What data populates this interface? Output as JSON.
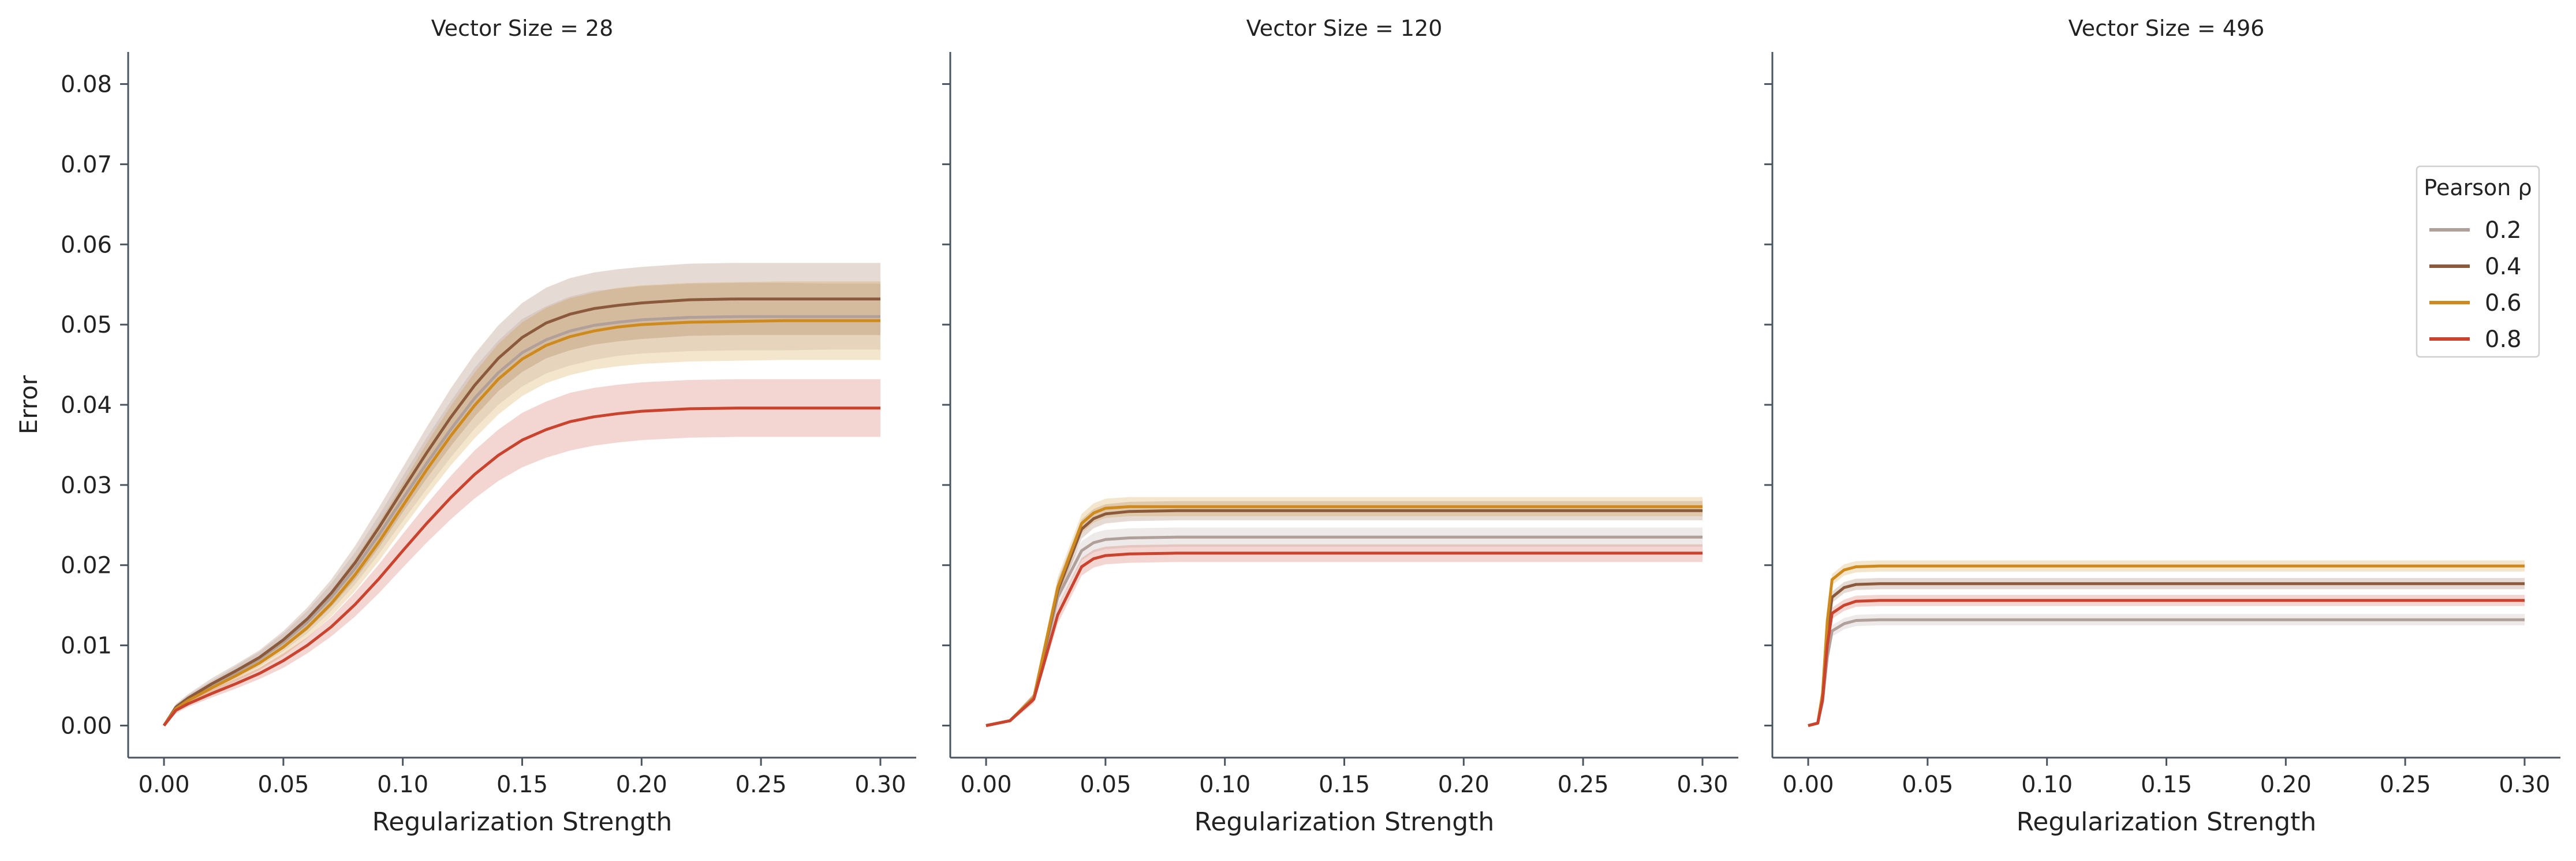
{
  "chart_data": [
    {
      "type": "line",
      "title": "Vector Size = 28",
      "xlabel": "Regularization Strength",
      "ylabel": "Error",
      "xlim": [
        -0.015,
        0.315
      ],
      "ylim": [
        -0.004,
        0.084
      ],
      "xticks": [
        "0.00",
        "0.05",
        "0.10",
        "0.15",
        "0.20",
        "0.25",
        "0.30"
      ],
      "yticks": [
        "0.00",
        "0.01",
        "0.02",
        "0.03",
        "0.04",
        "0.05",
        "0.06",
        "0.07",
        "0.08"
      ],
      "x": [
        0.0,
        0.005,
        0.01,
        0.02,
        0.03,
        0.04,
        0.05,
        0.06,
        0.07,
        0.08,
        0.09,
        0.1,
        0.11,
        0.12,
        0.13,
        0.14,
        0.15,
        0.16,
        0.17,
        0.18,
        0.19,
        0.2,
        0.22,
        0.24,
        0.26,
        0.28,
        0.3
      ],
      "series": [
        {
          "name": "0.2",
          "color": "#b19f99",
          "values": [
            0.0,
            0.0022,
            0.0033,
            0.005,
            0.0066,
            0.0083,
            0.0104,
            0.0129,
            0.016,
            0.0196,
            0.0238,
            0.0283,
            0.0327,
            0.0369,
            0.0408,
            0.044,
            0.0465,
            0.0481,
            0.0492,
            0.0499,
            0.0503,
            0.0506,
            0.0509,
            0.051,
            0.051,
            0.051,
            0.051
          ],
          "lower": [
            0.0,
            0.0018,
            0.0028,
            0.0044,
            0.0058,
            0.0074,
            0.0093,
            0.0115,
            0.0143,
            0.0176,
            0.0214,
            0.0255,
            0.0295,
            0.0334,
            0.037,
            0.04,
            0.0423,
            0.0439,
            0.0449,
            0.0456,
            0.0461,
            0.0464,
            0.0467,
            0.0468,
            0.0468,
            0.0469,
            0.0469
          ],
          "upper": [
            0.0,
            0.0026,
            0.0038,
            0.0056,
            0.0074,
            0.0092,
            0.0115,
            0.0143,
            0.0177,
            0.0216,
            0.0262,
            0.0311,
            0.0359,
            0.0404,
            0.0446,
            0.048,
            0.0507,
            0.0523,
            0.0535,
            0.0542,
            0.0545,
            0.0548,
            0.0551,
            0.0552,
            0.0552,
            0.0551,
            0.0551
          ]
        },
        {
          "name": "0.4",
          "color": "#8b5a3c",
          "values": [
            0.0,
            0.0023,
            0.0034,
            0.0052,
            0.0068,
            0.0085,
            0.0107,
            0.0133,
            0.0165,
            0.0203,
            0.0247,
            0.0294,
            0.034,
            0.0384,
            0.0424,
            0.0458,
            0.0484,
            0.0502,
            0.0513,
            0.052,
            0.0524,
            0.0527,
            0.0531,
            0.0532,
            0.0532,
            0.0532,
            0.0532
          ],
          "lower": [
            0.0,
            0.0019,
            0.0029,
            0.0045,
            0.006,
            0.0076,
            0.0096,
            0.0119,
            0.0148,
            0.0182,
            0.0222,
            0.0266,
            0.0308,
            0.0348,
            0.0385,
            0.0417,
            0.0441,
            0.0458,
            0.0468,
            0.0475,
            0.0479,
            0.0482,
            0.0486,
            0.0487,
            0.0487,
            0.0487,
            0.0487
          ],
          "upper": [
            0.0,
            0.0027,
            0.0039,
            0.0059,
            0.0076,
            0.0094,
            0.0118,
            0.0147,
            0.0182,
            0.0224,
            0.0272,
            0.0322,
            0.0372,
            0.042,
            0.0463,
            0.0499,
            0.0527,
            0.0546,
            0.0558,
            0.0565,
            0.0569,
            0.0572,
            0.0576,
            0.0577,
            0.0577,
            0.0577,
            0.0577
          ]
        },
        {
          "name": "0.6",
          "color": "#cf8a1d",
          "values": [
            0.0,
            0.0021,
            0.0031,
            0.0047,
            0.0062,
            0.0078,
            0.0098,
            0.0122,
            0.0152,
            0.0188,
            0.0229,
            0.0274,
            0.0319,
            0.0361,
            0.0399,
            0.0432,
            0.0457,
            0.0474,
            0.0485,
            0.0492,
            0.0497,
            0.05,
            0.0503,
            0.0504,
            0.0505,
            0.0505,
            0.0505
          ],
          "lower": [
            0.0,
            0.0017,
            0.0026,
            0.0041,
            0.0055,
            0.0069,
            0.0087,
            0.0109,
            0.0136,
            0.0168,
            0.0205,
            0.0246,
            0.0286,
            0.0324,
            0.0358,
            0.0388,
            0.0411,
            0.0427,
            0.0437,
            0.0444,
            0.0448,
            0.0451,
            0.0454,
            0.0455,
            0.0456,
            0.0456,
            0.0456
          ],
          "upper": [
            0.0,
            0.0025,
            0.0036,
            0.0053,
            0.0069,
            0.0087,
            0.0109,
            0.0135,
            0.0168,
            0.0208,
            0.0253,
            0.0302,
            0.0352,
            0.0398,
            0.044,
            0.0476,
            0.0503,
            0.0521,
            0.0533,
            0.054,
            0.0546,
            0.0549,
            0.0552,
            0.0553,
            0.0554,
            0.0554,
            0.0554
          ]
        },
        {
          "name": "0.8",
          "color": "#c9432e",
          "values": [
            0.0,
            0.0019,
            0.0027,
            0.004,
            0.0052,
            0.0065,
            0.0081,
            0.01,
            0.0123,
            0.0151,
            0.0183,
            0.0218,
            0.0252,
            0.0284,
            0.0313,
            0.0337,
            0.0356,
            0.0369,
            0.0379,
            0.0385,
            0.0389,
            0.0392,
            0.0395,
            0.0396,
            0.0396,
            0.0396,
            0.0396
          ],
          "lower": [
            0.0,
            0.0015,
            0.0023,
            0.0035,
            0.0046,
            0.0058,
            0.0072,
            0.009,
            0.0111,
            0.0136,
            0.0165,
            0.0197,
            0.0228,
            0.0257,
            0.0283,
            0.0305,
            0.0322,
            0.0334,
            0.0343,
            0.0349,
            0.0353,
            0.0356,
            0.0359,
            0.036,
            0.036,
            0.036,
            0.036
          ],
          "upper": [
            0.0,
            0.0023,
            0.0031,
            0.0045,
            0.0058,
            0.0072,
            0.009,
            0.011,
            0.0135,
            0.0166,
            0.0201,
            0.0239,
            0.0276,
            0.0311,
            0.0343,
            0.0369,
            0.039,
            0.0404,
            0.0415,
            0.0421,
            0.0425,
            0.0428,
            0.0431,
            0.0432,
            0.0432,
            0.0432,
            0.0432
          ]
        }
      ]
    },
    {
      "type": "line",
      "title": "Vector Size = 120",
      "xlabel": "Regularization Strength",
      "ylabel": "",
      "xlim": [
        -0.015,
        0.315
      ],
      "ylim": [
        -0.004,
        0.084
      ],
      "xticks": [
        "0.00",
        "0.05",
        "0.10",
        "0.15",
        "0.20",
        "0.25",
        "0.30"
      ],
      "yticks": [],
      "x": [
        0.0,
        0.01,
        0.02,
        0.03,
        0.04,
        0.045,
        0.05,
        0.06,
        0.08,
        0.1,
        0.15,
        0.2,
        0.25,
        0.3
      ],
      "series": [
        {
          "name": "0.2",
          "color": "#b19f99",
          "values": [
            0.0,
            0.0006,
            0.0035,
            0.016,
            0.0218,
            0.0228,
            0.0232,
            0.0234,
            0.0235,
            0.0235,
            0.0235,
            0.0235,
            0.0235,
            0.0235
          ],
          "lower": [
            0.0,
            0.0004,
            0.003,
            0.0148,
            0.0206,
            0.0216,
            0.022,
            0.0222,
            0.0223,
            0.0223,
            0.0223,
            0.0223,
            0.0223,
            0.0223
          ],
          "upper": [
            0.0,
            0.0008,
            0.004,
            0.0172,
            0.023,
            0.024,
            0.0244,
            0.0246,
            0.0247,
            0.0247,
            0.0247,
            0.0247,
            0.0247,
            0.0247
          ]
        },
        {
          "name": "0.4",
          "color": "#8b5a3c",
          "values": [
            0.0,
            0.0006,
            0.0035,
            0.0168,
            0.0245,
            0.0258,
            0.0264,
            0.0267,
            0.0268,
            0.0268,
            0.0268,
            0.0268,
            0.0268,
            0.0268
          ],
          "lower": [
            0.0,
            0.0004,
            0.003,
            0.0155,
            0.0233,
            0.0246,
            0.0252,
            0.0255,
            0.0256,
            0.0256,
            0.0256,
            0.0256,
            0.0256,
            0.0256
          ],
          "upper": [
            0.0,
            0.0008,
            0.004,
            0.0181,
            0.0257,
            0.027,
            0.0276,
            0.0279,
            0.028,
            0.028,
            0.028,
            0.028,
            0.028,
            0.028
          ]
        },
        {
          "name": "0.6",
          "color": "#cf8a1d",
          "values": [
            0.0,
            0.0006,
            0.0035,
            0.0172,
            0.0252,
            0.0265,
            0.0271,
            0.0273,
            0.0273,
            0.0273,
            0.0273,
            0.0273,
            0.0273,
            0.0273
          ],
          "lower": [
            0.0,
            0.0004,
            0.003,
            0.0159,
            0.024,
            0.0253,
            0.0259,
            0.0261,
            0.0261,
            0.0261,
            0.0261,
            0.0261,
            0.0261,
            0.0261
          ],
          "upper": [
            0.0,
            0.0008,
            0.004,
            0.0185,
            0.0264,
            0.0277,
            0.0283,
            0.0285,
            0.0285,
            0.0285,
            0.0285,
            0.0285,
            0.0285,
            0.0285
          ]
        },
        {
          "name": "0.8",
          "color": "#c9432e",
          "values": [
            0.0,
            0.0006,
            0.0033,
            0.0138,
            0.0198,
            0.0208,
            0.0212,
            0.0214,
            0.0215,
            0.0215,
            0.0215,
            0.0215,
            0.0215,
            0.0215
          ],
          "lower": [
            0.0,
            0.0004,
            0.0028,
            0.0127,
            0.0187,
            0.0197,
            0.0201,
            0.0203,
            0.0204,
            0.0204,
            0.0204,
            0.0204,
            0.0204,
            0.0204
          ],
          "upper": [
            0.0,
            0.0008,
            0.0038,
            0.0149,
            0.0209,
            0.0219,
            0.0223,
            0.0225,
            0.0226,
            0.0226,
            0.0226,
            0.0226,
            0.0226,
            0.0226
          ]
        }
      ]
    },
    {
      "type": "line",
      "title": "Vector Size = 496",
      "xlabel": "Regularization Strength",
      "ylabel": "",
      "xlim": [
        -0.015,
        0.315
      ],
      "ylim": [
        -0.004,
        0.084
      ],
      "xticks": [
        "0.00",
        "0.05",
        "0.10",
        "0.15",
        "0.20",
        "0.25",
        "0.30"
      ],
      "yticks": [],
      "x": [
        0.0,
        0.004,
        0.006,
        0.008,
        0.01,
        0.015,
        0.02,
        0.03,
        0.05,
        0.1,
        0.15,
        0.2,
        0.25,
        0.3
      ],
      "series": [
        {
          "name": "0.2",
          "color": "#b19f99",
          "values": [
            0.0,
            0.0003,
            0.003,
            0.0085,
            0.0118,
            0.0127,
            0.0131,
            0.0132,
            0.0132,
            0.0132,
            0.0132,
            0.0132,
            0.0132,
            0.0132
          ],
          "lower": [
            0.0,
            0.0002,
            0.0026,
            0.0079,
            0.0111,
            0.012,
            0.0124,
            0.0125,
            0.0125,
            0.0125,
            0.0125,
            0.0125,
            0.0125,
            0.0125
          ],
          "upper": [
            0.0,
            0.0004,
            0.0034,
            0.0091,
            0.0125,
            0.0134,
            0.0138,
            0.0139,
            0.0139,
            0.0139,
            0.0139,
            0.0139,
            0.0139,
            0.0139
          ]
        },
        {
          "name": "0.4",
          "color": "#8b5a3c",
          "values": [
            0.0,
            0.0003,
            0.0035,
            0.0115,
            0.016,
            0.0172,
            0.0176,
            0.0177,
            0.0177,
            0.0177,
            0.0177,
            0.0177,
            0.0177,
            0.0177
          ],
          "lower": [
            0.0,
            0.0002,
            0.003,
            0.0108,
            0.0153,
            0.0165,
            0.0169,
            0.017,
            0.017,
            0.017,
            0.017,
            0.017,
            0.017,
            0.017
          ],
          "upper": [
            0.0,
            0.0004,
            0.004,
            0.0122,
            0.0167,
            0.0179,
            0.0183,
            0.0184,
            0.0184,
            0.0184,
            0.0184,
            0.0184,
            0.0184,
            0.0184
          ]
        },
        {
          "name": "0.6",
          "color": "#cf8a1d",
          "values": [
            0.0,
            0.0003,
            0.004,
            0.013,
            0.0182,
            0.0194,
            0.0198,
            0.0199,
            0.0199,
            0.0199,
            0.0199,
            0.0199,
            0.0199,
            0.0199
          ],
          "lower": [
            0.0,
            0.0002,
            0.0035,
            0.0123,
            0.0175,
            0.0187,
            0.0191,
            0.0192,
            0.0192,
            0.0192,
            0.0192,
            0.0192,
            0.0192,
            0.0192
          ],
          "upper": [
            0.0,
            0.0004,
            0.0045,
            0.0137,
            0.0189,
            0.0201,
            0.0205,
            0.0206,
            0.0206,
            0.0206,
            0.0206,
            0.0206,
            0.0206,
            0.0206
          ]
        },
        {
          "name": "0.8",
          "color": "#c9432e",
          "values": [
            0.0,
            0.0003,
            0.0032,
            0.01,
            0.014,
            0.015,
            0.0155,
            0.0156,
            0.0156,
            0.0156,
            0.0156,
            0.0156,
            0.0156,
            0.0156
          ],
          "lower": [
            0.0,
            0.0002,
            0.0028,
            0.0094,
            0.0133,
            0.0143,
            0.0148,
            0.0149,
            0.0149,
            0.0149,
            0.0149,
            0.0149,
            0.0149,
            0.0149
          ],
          "upper": [
            0.0,
            0.0004,
            0.0036,
            0.0106,
            0.0147,
            0.0157,
            0.0162,
            0.0163,
            0.0163,
            0.0163,
            0.0163,
            0.0163,
            0.0163,
            0.0163
          ]
        }
      ]
    }
  ],
  "legend": {
    "title": "Pearson ρ",
    "placement": "right, upper-middle of third panel",
    "entries": [
      "0.2",
      "0.4",
      "0.6",
      "0.8"
    ]
  }
}
